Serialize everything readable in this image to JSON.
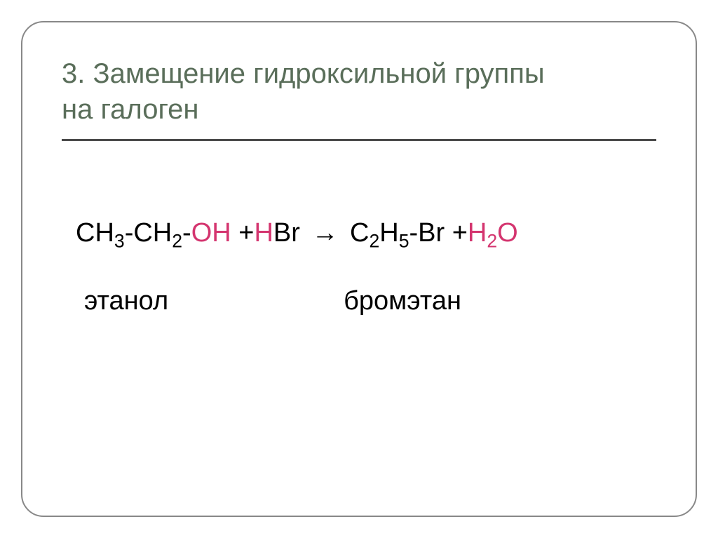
{
  "slide": {
    "title_line1": "3. Замещение гидроксильной группы",
    "title_line2": "на галоген",
    "title_color": "#5a6e5a",
    "title_fontsize": 40,
    "border_color": "#888888",
    "border_radius": 32,
    "divider_color": "#4a4a4a",
    "background_color": "#ffffff"
  },
  "equation": {
    "reactant1_part1": "CH",
    "reactant1_sub1": "3",
    "reactant1_part2": "-CH",
    "reactant1_sub2": "2",
    "reactant1_part3": "-",
    "reactant1_highlight": "OH",
    "plus1": " +",
    "reactant2_highlight": "H",
    "reactant2_part": "Br",
    "arrow": "→",
    "product1_part1": "C",
    "product1_sub1": "2",
    "product1_part2": "H",
    "product1_sub2": "5",
    "product1_part3": "-Br",
    "plus2": "  +",
    "product2_highlight1": "H",
    "product2_sub": "2",
    "product2_highlight2": "O",
    "highlight_color": "#d4356f",
    "text_color": "#000000",
    "fontsize": 38
  },
  "labels": {
    "left": "этанол",
    "right": "бромэтан",
    "fontsize": 38,
    "color": "#000000"
  }
}
